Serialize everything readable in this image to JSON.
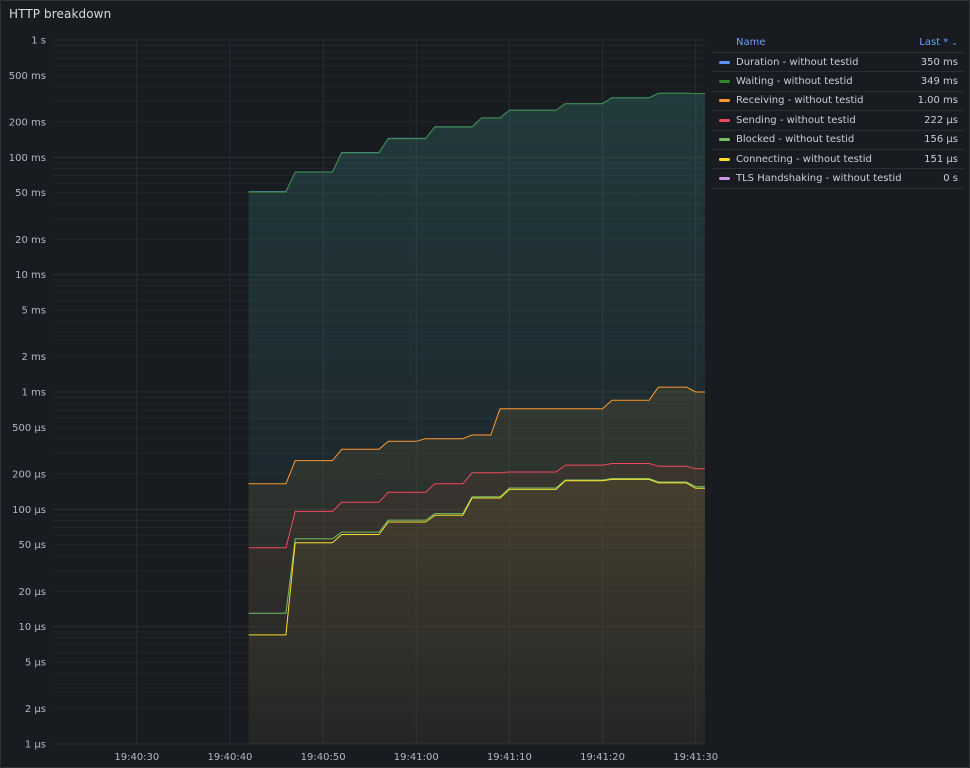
{
  "panel": {
    "title": "HTTP breakdown"
  },
  "legend": {
    "header_name": "Name",
    "header_last": "Last *",
    "items": [
      {
        "name": "Duration - without testid",
        "value": "350 ms",
        "color": "#5794f2"
      },
      {
        "name": "Waiting - without testid",
        "value": "349 ms",
        "color": "#37872d"
      },
      {
        "name": "Receiving - without testid",
        "value": "1.00 ms",
        "color": "#ff9830"
      },
      {
        "name": "Sending - without testid",
        "value": "222 µs",
        "color": "#f2495c"
      },
      {
        "name": "Blocked - without testid",
        "value": "156 µs",
        "color": "#73bf69"
      },
      {
        "name": "Connecting - without testid",
        "value": "151 µs",
        "color": "#fade2a"
      },
      {
        "name": "TLS Handshaking - without testid",
        "value": "0 s",
        "color": "#ca95e5"
      }
    ]
  },
  "chart_data": {
    "type": "line",
    "title": "HTTP breakdown",
    "y_scale": "log",
    "ylim_seconds": [
      1e-06,
      1
    ],
    "y_ticks": [
      {
        "label": "1 s",
        "value": 1
      },
      {
        "label": "500 ms",
        "value": 0.5
      },
      {
        "label": "200 ms",
        "value": 0.2
      },
      {
        "label": "100 ms",
        "value": 0.1
      },
      {
        "label": "50 ms",
        "value": 0.05
      },
      {
        "label": "20 ms",
        "value": 0.02
      },
      {
        "label": "10 ms",
        "value": 0.01
      },
      {
        "label": "5 ms",
        "value": 0.005
      },
      {
        "label": "2 ms",
        "value": 0.002
      },
      {
        "label": "1 ms",
        "value": 0.001
      },
      {
        "label": "500 µs",
        "value": 0.0005
      },
      {
        "label": "200 µs",
        "value": 0.0002
      },
      {
        "label": "100 µs",
        "value": 0.0001
      },
      {
        "label": "50 µs",
        "value": 5e-05
      },
      {
        "label": "20 µs",
        "value": 2e-05
      },
      {
        "label": "10 µs",
        "value": 1e-05
      },
      {
        "label": "5 µs",
        "value": 5e-06
      },
      {
        "label": "2 µs",
        "value": 2e-06
      },
      {
        "label": "1 µs",
        "value": 1e-06
      }
    ],
    "x_range": [
      "19:40:21",
      "19:41:31"
    ],
    "x_ticks": [
      "19:40:30",
      "19:40:40",
      "19:40:50",
      "19:41:00",
      "19:41:10",
      "19:41:20",
      "19:41:30"
    ],
    "grid": true,
    "legend_placement": "right",
    "series": [
      {
        "name": "Duration - without testid",
        "color": "#5794f2",
        "points": [
          [
            "19:40:42",
            0.051
          ],
          [
            "19:40:46",
            0.051
          ],
          [
            "19:40:47",
            0.075
          ],
          [
            "19:40:51",
            0.075
          ],
          [
            "19:40:52",
            0.11
          ],
          [
            "19:40:56",
            0.11
          ],
          [
            "19:40:57",
            0.145
          ],
          [
            "19:41:01",
            0.145
          ],
          [
            "19:41:02",
            0.182
          ],
          [
            "19:41:06",
            0.182
          ],
          [
            "19:41:07",
            0.217
          ],
          [
            "19:41:09",
            0.217
          ],
          [
            "19:41:10",
            0.252
          ],
          [
            "19:41:15",
            0.252
          ],
          [
            "19:41:16",
            0.287
          ],
          [
            "19:41:20",
            0.287
          ],
          [
            "19:41:21",
            0.322
          ],
          [
            "19:41:25",
            0.322
          ],
          [
            "19:41:26",
            0.352
          ],
          [
            "19:41:29",
            0.352
          ],
          [
            "19:41:30",
            0.35
          ],
          [
            "19:41:31",
            0.35
          ]
        ]
      },
      {
        "name": "Waiting - without testid",
        "color": "#37872d",
        "points": [
          [
            "19:40:42",
            0.0505
          ],
          [
            "19:40:46",
            0.0505
          ],
          [
            "19:40:47",
            0.0745
          ],
          [
            "19:40:51",
            0.0745
          ],
          [
            "19:40:52",
            0.109
          ],
          [
            "19:40:56",
            0.109
          ],
          [
            "19:40:57",
            0.144
          ],
          [
            "19:41:01",
            0.144
          ],
          [
            "19:41:02",
            0.181
          ],
          [
            "19:41:06",
            0.181
          ],
          [
            "19:41:07",
            0.216
          ],
          [
            "19:41:09",
            0.216
          ],
          [
            "19:41:10",
            0.251
          ],
          [
            "19:41:15",
            0.251
          ],
          [
            "19:41:16",
            0.286
          ],
          [
            "19:41:20",
            0.286
          ],
          [
            "19:41:21",
            0.321
          ],
          [
            "19:41:25",
            0.321
          ],
          [
            "19:41:26",
            0.351
          ],
          [
            "19:41:29",
            0.351
          ],
          [
            "19:41:30",
            0.349
          ],
          [
            "19:41:31",
            0.349
          ]
        ]
      },
      {
        "name": "Receiving - without testid",
        "color": "#ff9830",
        "points": [
          [
            "19:40:42",
            0.000165
          ],
          [
            "19:40:46",
            0.000165
          ],
          [
            "19:40:47",
            0.00026
          ],
          [
            "19:40:51",
            0.00026
          ],
          [
            "19:40:52",
            0.000325
          ],
          [
            "19:40:56",
            0.000325
          ],
          [
            "19:40:57",
            0.00038
          ],
          [
            "19:41:00",
            0.00038
          ],
          [
            "19:41:01",
            0.0004
          ],
          [
            "19:41:05",
            0.0004
          ],
          [
            "19:41:06",
            0.00043
          ],
          [
            "19:41:08",
            0.00043
          ],
          [
            "19:41:09",
            0.00072
          ],
          [
            "19:41:20",
            0.00072
          ],
          [
            "19:41:21",
            0.00085
          ],
          [
            "19:41:25",
            0.00085
          ],
          [
            "19:41:26",
            0.0011
          ],
          [
            "19:41:29",
            0.0011
          ],
          [
            "19:41:30",
            0.001
          ],
          [
            "19:41:31",
            0.001
          ]
        ]
      },
      {
        "name": "Sending - without testid",
        "color": "#f2495c",
        "points": [
          [
            "19:40:42",
            4.7e-05
          ],
          [
            "19:40:46",
            4.7e-05
          ],
          [
            "19:40:47",
            9.6e-05
          ],
          [
            "19:40:51",
            9.6e-05
          ],
          [
            "19:40:52",
            0.000115
          ],
          [
            "19:40:56",
            0.000115
          ],
          [
            "19:40:57",
            0.00014
          ],
          [
            "19:41:01",
            0.00014
          ],
          [
            "19:41:02",
            0.000165
          ],
          [
            "19:41:05",
            0.000165
          ],
          [
            "19:41:06",
            0.000205
          ],
          [
            "19:41:09",
            0.000205
          ],
          [
            "19:41:10",
            0.000208
          ],
          [
            "19:41:15",
            0.000208
          ],
          [
            "19:41:16",
            0.000238
          ],
          [
            "19:41:20",
            0.000238
          ],
          [
            "19:41:21",
            0.000246
          ],
          [
            "19:41:25",
            0.000246
          ],
          [
            "19:41:26",
            0.000233
          ],
          [
            "19:41:29",
            0.000233
          ],
          [
            "19:41:30",
            0.000222
          ],
          [
            "19:41:31",
            0.000222
          ]
        ]
      },
      {
        "name": "Blocked - without testid",
        "color": "#73bf69",
        "points": [
          [
            "19:40:42",
            1.3e-05
          ],
          [
            "19:40:46",
            1.3e-05
          ],
          [
            "19:40:47",
            5.6e-05
          ],
          [
            "19:40:51",
            5.6e-05
          ],
          [
            "19:40:52",
            6.4e-05
          ],
          [
            "19:40:56",
            6.4e-05
          ],
          [
            "19:40:57",
            8.1e-05
          ],
          [
            "19:41:01",
            8.1e-05
          ],
          [
            "19:41:02",
            9.2e-05
          ],
          [
            "19:41:05",
            9.2e-05
          ],
          [
            "19:41:06",
            0.000128
          ],
          [
            "19:41:09",
            0.000128
          ],
          [
            "19:41:10",
            0.000152
          ],
          [
            "19:41:15",
            0.000152
          ],
          [
            "19:41:16",
            0.000178
          ],
          [
            "19:41:20",
            0.000178
          ],
          [
            "19:41:21",
            0.000183
          ],
          [
            "19:41:25",
            0.000183
          ],
          [
            "19:41:26",
            0.000171
          ],
          [
            "19:41:29",
            0.000171
          ],
          [
            "19:41:30",
            0.000156
          ],
          [
            "19:41:31",
            0.000156
          ]
        ]
      },
      {
        "name": "Connecting - without testid",
        "color": "#fade2a",
        "points": [
          [
            "19:40:42",
            8.5e-06
          ],
          [
            "19:40:46",
            8.5e-06
          ],
          [
            "19:40:47",
            5.2e-05
          ],
          [
            "19:40:51",
            5.2e-05
          ],
          [
            "19:40:52",
            6.1e-05
          ],
          [
            "19:40:56",
            6.1e-05
          ],
          [
            "19:40:57",
            7.8e-05
          ],
          [
            "19:41:01",
            7.8e-05
          ],
          [
            "19:41:02",
            8.9e-05
          ],
          [
            "19:41:05",
            8.9e-05
          ],
          [
            "19:41:06",
            0.000125
          ],
          [
            "19:41:09",
            0.000125
          ],
          [
            "19:41:10",
            0.000148
          ],
          [
            "19:41:15",
            0.000148
          ],
          [
            "19:41:16",
            0.000175
          ],
          [
            "19:41:20",
            0.000175
          ],
          [
            "19:41:21",
            0.00018
          ],
          [
            "19:41:25",
            0.00018
          ],
          [
            "19:41:26",
            0.000168
          ],
          [
            "19:41:29",
            0.000168
          ],
          [
            "19:41:30",
            0.000151
          ],
          [
            "19:41:31",
            0.000151
          ]
        ]
      },
      {
        "name": "TLS Handshaking - without testid",
        "color": "#ca95e5",
        "points": []
      }
    ]
  }
}
